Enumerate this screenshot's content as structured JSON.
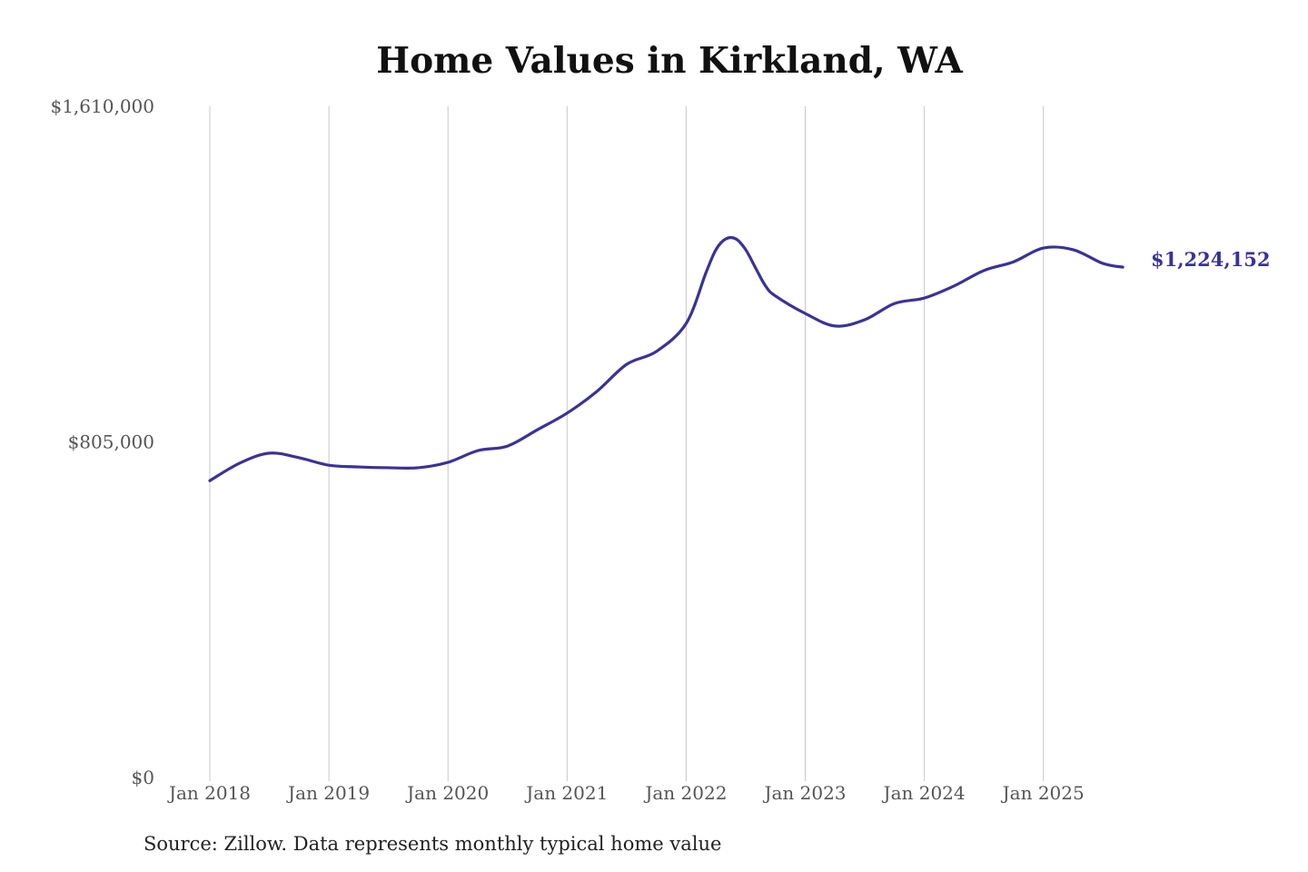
{
  "chart_data": {
    "type": "line",
    "title": "Home Values in Kirkland, WA",
    "source": "Source: Zillow. Data represents monthly typical home value",
    "xlabel": "",
    "ylabel": "",
    "ylim": [
      0,
      1610000
    ],
    "y_ticks": [
      {
        "value": 0,
        "label": "$0"
      },
      {
        "value": 805000,
        "label": "$805,000"
      },
      {
        "value": 1610000,
        "label": "$1,610,000"
      }
    ],
    "x_ticks": [
      "Jan 2018",
      "Jan 2019",
      "Jan 2020",
      "Jan 2021",
      "Jan 2022",
      "Jan 2023",
      "Jan 2024",
      "Jan 2025"
    ],
    "grid": "vertical",
    "line_color": "#3a3299",
    "end_label": "$1,224,152",
    "series": [
      {
        "x": [
          "2018-01",
          "2018-04",
          "2018-07",
          "2018-10",
          "2019-01",
          "2019-04",
          "2019-07",
          "2019-10",
          "2020-01",
          "2020-04",
          "2020-07",
          "2020-10",
          "2021-01",
          "2021-04",
          "2021-07",
          "2021-10",
          "2022-01",
          "2022-03",
          "2022-04",
          "2022-05",
          "2022-06",
          "2022-07",
          "2022-08",
          "2022-09",
          "2022-10",
          "2023-01",
          "2023-04",
          "2023-07",
          "2023-10",
          "2024-01",
          "2024-04",
          "2024-07",
          "2024-10",
          "2025-01",
          "2025-04",
          "2025-07",
          "2025-09"
        ],
        "values": [
          712000,
          754000,
          778000,
          767000,
          749000,
          745000,
          743000,
          743000,
          756000,
          784000,
          795000,
          834000,
          874000,
          926000,
          991000,
          1022000,
          1089000,
          1211000,
          1266000,
          1292000,
          1292000,
          1266000,
          1222000,
          1179000,
          1155000,
          1113000,
          1083000,
          1098000,
          1137000,
          1150000,
          1179000,
          1216000,
          1237000,
          1270000,
          1266000,
          1233000,
          1224152
        ]
      }
    ]
  }
}
